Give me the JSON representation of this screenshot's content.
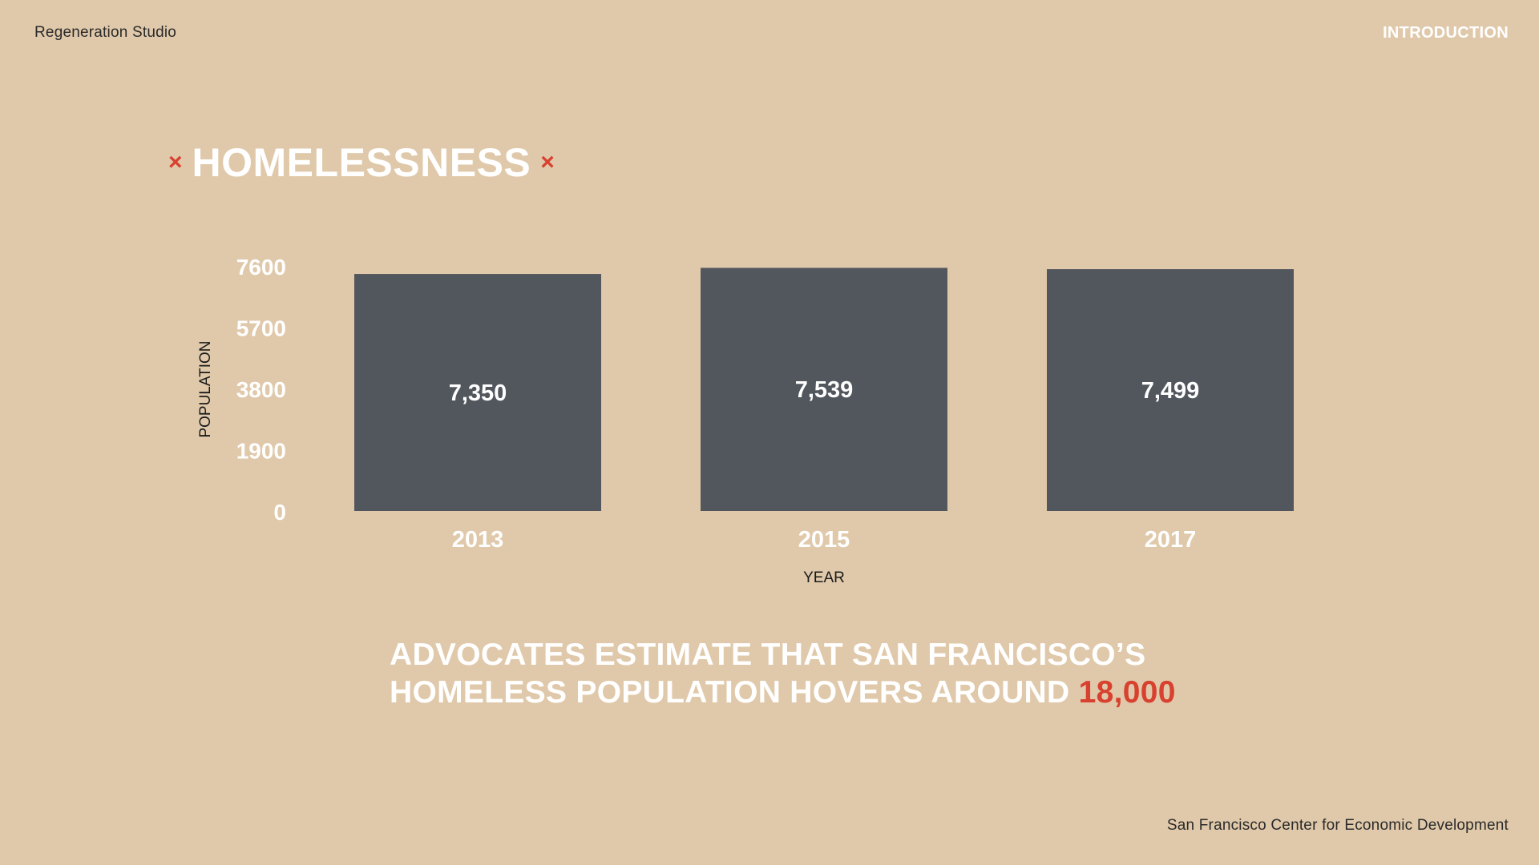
{
  "header": {
    "studio": "Regeneration Studio",
    "section": "INTRODUCTION"
  },
  "title": {
    "mark_left": "×",
    "text": "HOMELESSNESS",
    "mark_right": "×"
  },
  "statement": {
    "line1": "ADVOCATES ESTIMATE THAT SAN FRANCISCO’S",
    "line2": "HOMELESS POPULATION HOVERS AROUND",
    "highlight": "18,000"
  },
  "footer": {
    "source": "San Francisco Center for Economic Development"
  },
  "colors": {
    "background": "#e0c9aa",
    "bar": "#52565d",
    "text": "#ffffff",
    "accent": "#d8412f"
  },
  "chart_data": {
    "type": "bar",
    "categories": [
      "2013",
      "2015",
      "2017"
    ],
    "values": [
      7350,
      7539,
      7499
    ],
    "value_labels": [
      "7,350",
      "7,539",
      "7,499"
    ],
    "yticks": [
      "0",
      "1900",
      "3800",
      "5700",
      "7600"
    ],
    "ylim": [
      0,
      7600
    ],
    "xlabel": "YEAR",
    "ylabel": "POPULATION",
    "grid": false,
    "legend": "none"
  }
}
